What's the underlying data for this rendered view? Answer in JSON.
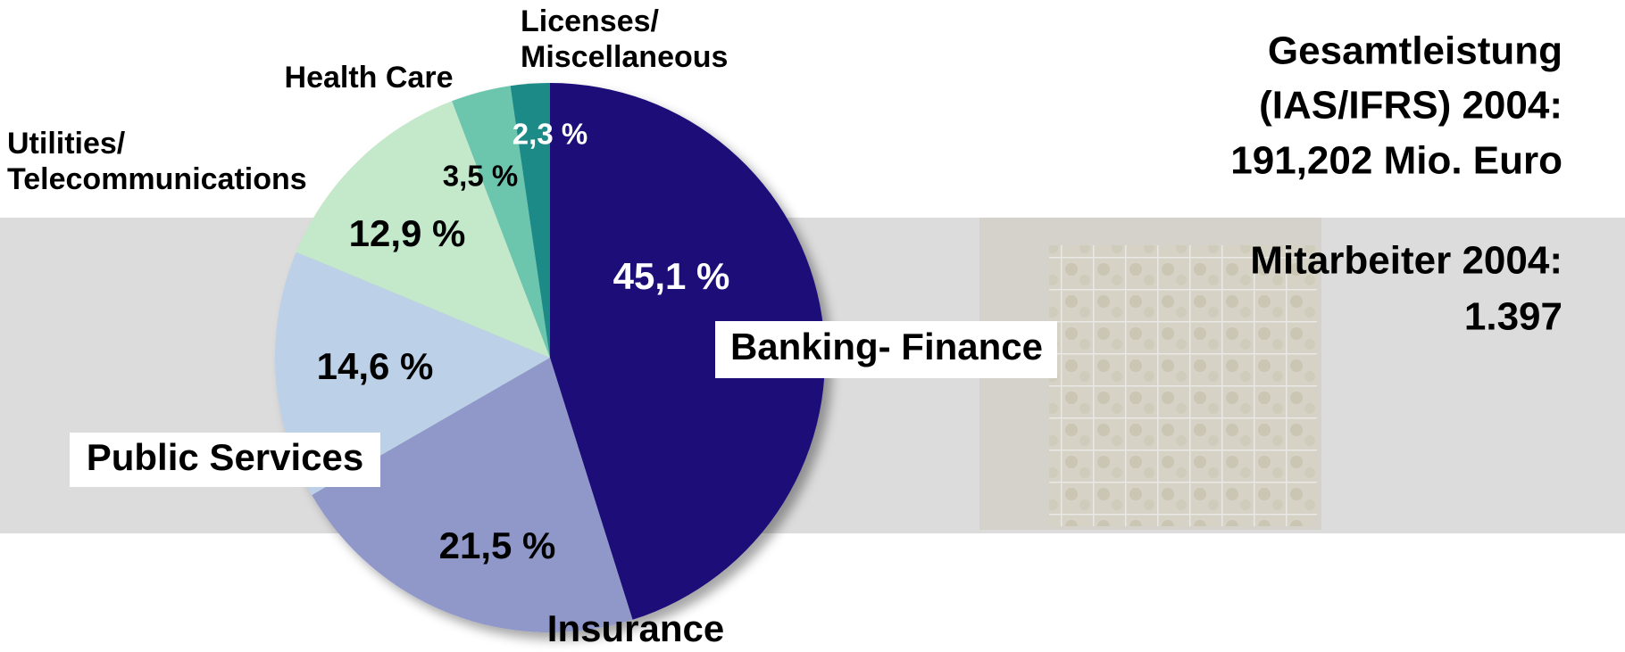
{
  "chart_data": {
    "type": "pie",
    "categories": [
      "Banking- Finance",
      "Insurance",
      "Public Services",
      "Utilities/\nTelecommunications",
      "Health Care",
      "Licenses/\nMiscellaneous"
    ],
    "values": [
      45.1,
      21.5,
      14.6,
      12.9,
      3.5,
      2.3
    ],
    "value_labels": [
      "45,1 %",
      "21,5 %",
      "14,6 %",
      "12,9 %",
      "3,5 %",
      "2,3 %"
    ],
    "colors": [
      "#1a0a78",
      "#8f98c8",
      "#bcd0e8",
      "#c4e8ca",
      "#6cc6ae",
      "#1f8a86"
    ],
    "annotations": [
      "Gesamtleistung",
      "(IAS/IFRS) 2004:",
      "191,202 Mio. Euro",
      "Mitarbeiter 2004:",
      "1.397"
    ]
  }
}
